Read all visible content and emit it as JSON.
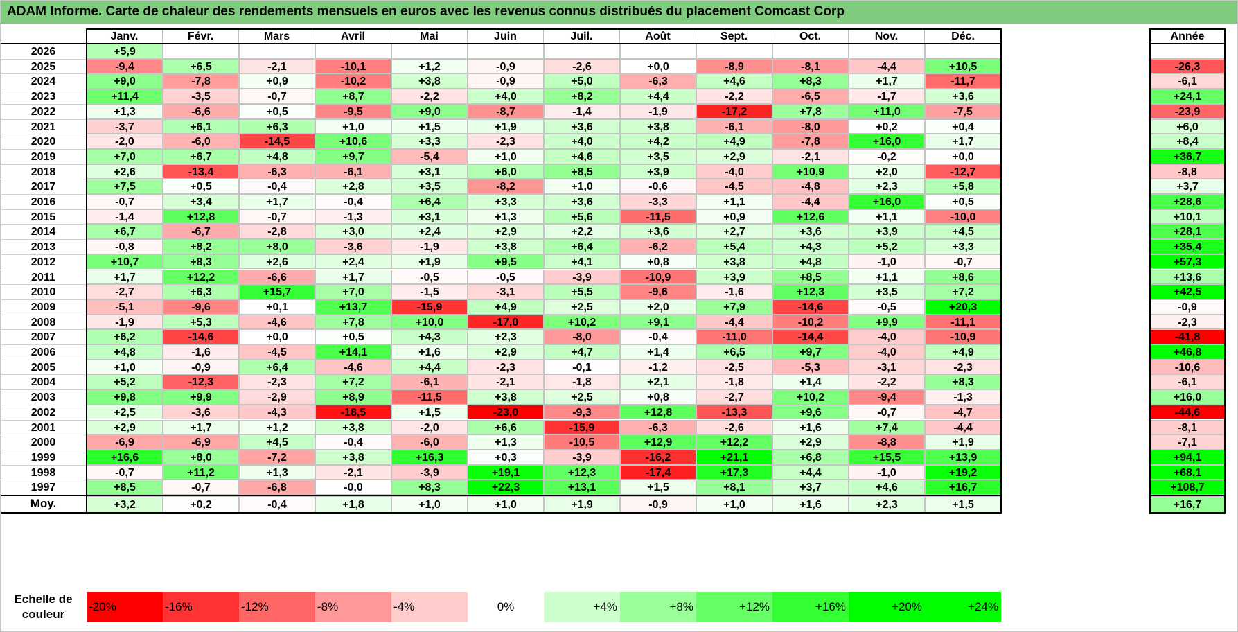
{
  "title": "ADAM Informe. Carte de chaleur des rendements mensuels en euros avec les revenus connus distribués du placement Comcast Corp",
  "chart_data": {
    "type": "heatmap",
    "title": "ADAM Informe. Carte de chaleur des rendements mensuels en euros avec les revenus connus distribués du placement Comcast Corp",
    "months": [
      "Janv.",
      "Févr.",
      "Mars",
      "Avril",
      "Mai",
      "Juin",
      "Juil.",
      "Août",
      "Sept.",
      "Oct.",
      "Nov.",
      "Déc."
    ],
    "annual_header": "Année",
    "rows": [
      {
        "year": "2026",
        "values": [
          "+5,9",
          "",
          "",
          "",
          "",
          "",
          "",
          "",
          "",
          "",
          "",
          ""
        ],
        "annual": ""
      },
      {
        "year": "2025",
        "values": [
          "-9,4",
          "+6,5",
          "-2,1",
          "-10,1",
          "+1,2",
          "-0,9",
          "-2,6",
          "+0,0",
          "-8,9",
          "-8,1",
          "-4,4",
          "+10,5"
        ],
        "annual": "-26,3"
      },
      {
        "year": "2024",
        "values": [
          "+9,0",
          "-7,8",
          "+0,9",
          "-10,2",
          "+3,8",
          "-0,9",
          "+5,0",
          "-6,3",
          "+4,6",
          "+8,3",
          "+1,7",
          "-11,7"
        ],
        "annual": "-6,1"
      },
      {
        "year": "2023",
        "values": [
          "+11,4",
          "-3,5",
          "-0,7",
          "+8,7",
          "-2,2",
          "+4,0",
          "+8,2",
          "+4,4",
          "-2,2",
          "-6,5",
          "-1,7",
          "+3,6"
        ],
        "annual": "+24,1"
      },
      {
        "year": "2022",
        "values": [
          "+1,3",
          "-6,6",
          "+0,5",
          "-9,5",
          "+9,0",
          "-8,7",
          "-1,4",
          "-1,9",
          "-17,2",
          "+7,8",
          "+11,0",
          "-7,5"
        ],
        "annual": "-23,9"
      },
      {
        "year": "2021",
        "values": [
          "-3,7",
          "+6,1",
          "+6,3",
          "+1,0",
          "+1,5",
          "+1,9",
          "+3,6",
          "+3,8",
          "-6,1",
          "-8,0",
          "+0,2",
          "+0,4"
        ],
        "annual": "+6,0"
      },
      {
        "year": "2020",
        "values": [
          "-2,0",
          "-6,0",
          "-14,5",
          "+10,6",
          "+3,3",
          "-2,3",
          "+4,0",
          "+4,2",
          "+4,9",
          "-7,8",
          "+16,0",
          "+1,7"
        ],
        "annual": "+8,4"
      },
      {
        "year": "2019",
        "values": [
          "+7,0",
          "+6,7",
          "+4,8",
          "+9,7",
          "-5,4",
          "+1,0",
          "+4,6",
          "+3,5",
          "+2,9",
          "-2,1",
          "-0,2",
          "+0,0"
        ],
        "annual": "+36,7"
      },
      {
        "year": "2018",
        "values": [
          "+2,6",
          "-13,4",
          "-6,3",
          "-6,1",
          "+3,1",
          "+6,0",
          "+8,5",
          "+3,9",
          "-4,0",
          "+10,9",
          "+2,0",
          "-12,7"
        ],
        "annual": "-8,8"
      },
      {
        "year": "2017",
        "values": [
          "+7,5",
          "+0,5",
          "-0,4",
          "+2,8",
          "+3,5",
          "-8,2",
          "+1,0",
          "-0,6",
          "-4,5",
          "-4,8",
          "+2,3",
          "+5,8"
        ],
        "annual": "+3,7"
      },
      {
        "year": "2016",
        "values": [
          "-0,7",
          "+3,4",
          "+1,7",
          "-0,4",
          "+6,4",
          "+3,3",
          "+3,6",
          "-3,3",
          "+1,1",
          "-4,4",
          "+16,0",
          "+0,5"
        ],
        "annual": "+28,6"
      },
      {
        "year": "2015",
        "values": [
          "-1,4",
          "+12,8",
          "-0,7",
          "-1,3",
          "+3,1",
          "+1,3",
          "+5,6",
          "-11,5",
          "+0,9",
          "+12,6",
          "+1,1",
          "-10,0"
        ],
        "annual": "+10,1"
      },
      {
        "year": "2014",
        "values": [
          "+6,7",
          "-6,7",
          "-2,8",
          "+3,0",
          "+2,4",
          "+2,9",
          "+2,2",
          "+3,6",
          "+2,7",
          "+3,6",
          "+3,9",
          "+4,5"
        ],
        "annual": "+28,1"
      },
      {
        "year": "2013",
        "values": [
          "-0,8",
          "+8,2",
          "+8,0",
          "-3,6",
          "-1,9",
          "+3,8",
          "+6,4",
          "-6,2",
          "+5,4",
          "+4,3",
          "+5,2",
          "+3,3"
        ],
        "annual": "+35,4"
      },
      {
        "year": "2012",
        "values": [
          "+10,7",
          "+8,3",
          "+2,6",
          "+2,4",
          "+1,9",
          "+9,5",
          "+4,1",
          "+0,8",
          "+3,8",
          "+4,8",
          "-1,0",
          "-0,7"
        ],
        "annual": "+57,3"
      },
      {
        "year": "2011",
        "values": [
          "+1,7",
          "+12,2",
          "-6,6",
          "+1,7",
          "-0,5",
          "-0,5",
          "-3,9",
          "-10,9",
          "+3,9",
          "+8,5",
          "+1,1",
          "+8,6"
        ],
        "annual": "+13,6"
      },
      {
        "year": "2010",
        "values": [
          "-2,7",
          "+6,3",
          "+15,7",
          "+7,0",
          "-1,5",
          "-3,1",
          "+5,5",
          "-9,6",
          "-1,6",
          "+12,3",
          "+3,5",
          "+7,2"
        ],
        "annual": "+42,5"
      },
      {
        "year": "2009",
        "values": [
          "-5,1",
          "-9,6",
          "+0,1",
          "+13,7",
          "-15,9",
          "+4,9",
          "+2,5",
          "+2,0",
          "+7,9",
          "-14,6",
          "-0,5",
          "+20,3"
        ],
        "annual": "-0,9"
      },
      {
        "year": "2008",
        "values": [
          "-1,9",
          "+5,3",
          "-4,6",
          "+7,8",
          "+10,0",
          "-17,0",
          "+10,2",
          "+9,1",
          "-4,4",
          "-10,2",
          "+9,9",
          "-11,1"
        ],
        "annual": "-2,3"
      },
      {
        "year": "2007",
        "values": [
          "+6,2",
          "-14,6",
          "+0,0",
          "+0,5",
          "+4,3",
          "+2,3",
          "-8,0",
          "-0,4",
          "-11,0",
          "-14,4",
          "-4,0",
          "-10,9"
        ],
        "annual": "-41,8"
      },
      {
        "year": "2006",
        "values": [
          "+4,8",
          "-1,6",
          "-4,5",
          "+14,1",
          "+1,6",
          "+2,9",
          "+4,7",
          "+1,4",
          "+6,5",
          "+9,7",
          "-4,0",
          "+4,9"
        ],
        "annual": "+46,8"
      },
      {
        "year": "2005",
        "values": [
          "+1,0",
          "-0,9",
          "+6,4",
          "-4,6",
          "+4,4",
          "-2,3",
          "-0,1",
          "-1,2",
          "-2,5",
          "-5,3",
          "-3,1",
          "-2,3"
        ],
        "annual": "-10,6"
      },
      {
        "year": "2004",
        "values": [
          "+5,2",
          "-12,3",
          "-2,3",
          "+7,2",
          "-6,1",
          "-2,1",
          "-1,8",
          "+2,1",
          "-1,8",
          "+1,4",
          "-2,2",
          "+8,3"
        ],
        "annual": "-6,1"
      },
      {
        "year": "2003",
        "values": [
          "+9,8",
          "+9,9",
          "-2,9",
          "+8,9",
          "-11,5",
          "+3,8",
          "+2,5",
          "+0,8",
          "-2,7",
          "+10,2",
          "-9,4",
          "-1,3"
        ],
        "annual": "+16,0"
      },
      {
        "year": "2002",
        "values": [
          "+2,5",
          "-3,6",
          "-4,3",
          "-18,5",
          "+1,5",
          "-23,0",
          "-9,3",
          "+12,8",
          "-13,3",
          "+9,6",
          "-0,7",
          "-4,7"
        ],
        "annual": "-44,6"
      },
      {
        "year": "2001",
        "values": [
          "+2,9",
          "+1,7",
          "+1,2",
          "+3,8",
          "-2,0",
          "+6,6",
          "-15,9",
          "-6,3",
          "-2,6",
          "+1,6",
          "+7,4",
          "-4,4"
        ],
        "annual": "-8,1"
      },
      {
        "year": "2000",
        "values": [
          "-6,9",
          "-6,9",
          "+4,5",
          "-0,4",
          "-6,0",
          "+1,3",
          "-10,5",
          "+12,9",
          "+12,2",
          "+2,9",
          "-8,8",
          "+1,9"
        ],
        "annual": "-7,1"
      },
      {
        "year": "1999",
        "values": [
          "+16,6",
          "+8,0",
          "-7,2",
          "+3,8",
          "+16,3",
          "+0,3",
          "-3,9",
          "-16,2",
          "+21,1",
          "+6,8",
          "+15,5",
          "+13,9"
        ],
        "annual": "+94,1"
      },
      {
        "year": "1998",
        "values": [
          "-0,7",
          "+11,2",
          "+1,3",
          "-2,1",
          "-3,9",
          "+19,1",
          "+12,3",
          "-17,4",
          "+17,3",
          "+4,4",
          "-1,0",
          "+19,2"
        ],
        "annual": "+68,1"
      },
      {
        "year": "1997",
        "values": [
          "+8,5",
          "-0,7",
          "-6,8",
          "-0,0",
          "+8,3",
          "+22,3",
          "+13,1",
          "+1,5",
          "+8,1",
          "+3,7",
          "+4,6",
          "+16,7"
        ],
        "annual": "+108,7"
      }
    ],
    "average": {
      "label": "Moy.",
      "values": [
        "+3,2",
        "+0,2",
        "-0,4",
        "+1,8",
        "+1,0",
        "+1,0",
        "+1,9",
        "-0,9",
        "+1,0",
        "+1,6",
        "+2,3",
        "+1,5"
      ],
      "annual": "+16,7"
    },
    "color_scale": {
      "label_line1": "Echelle de",
      "label_line2": "couleur",
      "stops": [
        "-20%",
        "-16%",
        "-12%",
        "-8%",
        "-4%",
        "0%",
        "+4%",
        "+8%",
        "+12%",
        "+16%",
        "+20%",
        "+24%"
      ]
    }
  },
  "colors": {
    "title_bg": "#7fcc7f",
    "max_red": "#ff0000",
    "max_green": "#00ff00",
    "neutral": "#ffffff"
  }
}
